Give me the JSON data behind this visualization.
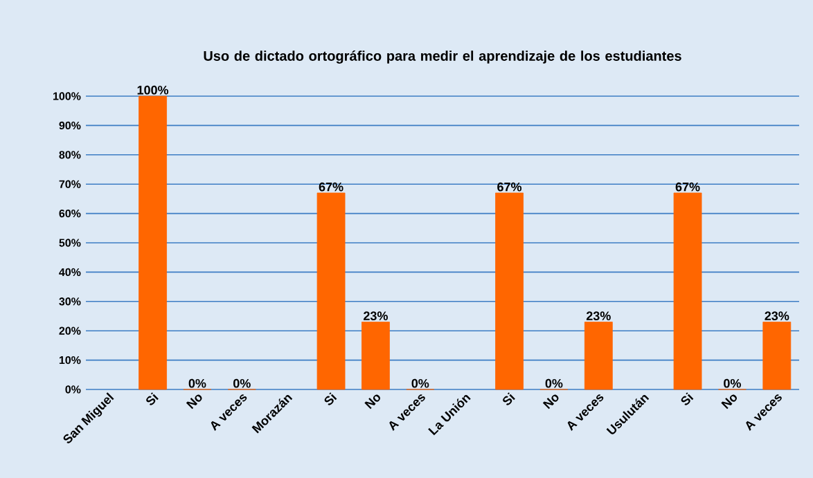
{
  "chart_data": {
    "type": "bar",
    "title": "Uso de dictado ortográfico para medir el aprendizaje de los estudiantes",
    "categories": [
      "San Miguel",
      "Si",
      "No",
      "A veces",
      "Morazán",
      "Si",
      "No",
      "A veces",
      "La Unión",
      "Si",
      "No",
      "A veces",
      "Usulután",
      "Si",
      "No",
      "A veces"
    ],
    "values": [
      null,
      100,
      0,
      0,
      null,
      67,
      23,
      0,
      null,
      67,
      0,
      23,
      null,
      67,
      0,
      23
    ],
    "value_labels": [
      null,
      "100%",
      "0%",
      "0%",
      null,
      "67%",
      "23%",
      "0%",
      null,
      "67%",
      "0%",
      "23%",
      null,
      "67%",
      "0%",
      "23%"
    ],
    "color": "#ff6600",
    "ylim": [
      0,
      100
    ],
    "yticks": [
      {
        "value": 0,
        "label": "0%"
      },
      {
        "value": 10,
        "label": "10%"
      },
      {
        "value": 20,
        "label": "20%"
      },
      {
        "value": 30,
        "label": "30%"
      },
      {
        "value": 40,
        "label": "40%"
      },
      {
        "value": 50,
        "label": "50%"
      },
      {
        "value": 60,
        "label": "60%"
      },
      {
        "value": 70,
        "label": "70%"
      },
      {
        "value": 80,
        "label": "80%"
      },
      {
        "value": 90,
        "label": "90%"
      },
      {
        "value": 100,
        "label": "100%"
      }
    ],
    "grid": "y"
  }
}
